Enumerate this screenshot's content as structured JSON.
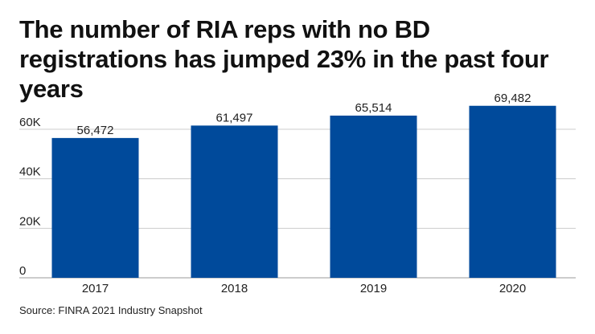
{
  "chart_data": {
    "type": "bar",
    "title": "The number of RIA reps with no BD registrations has jumped 23% in the past four years",
    "categories": [
      "2017",
      "2018",
      "2019",
      "2020"
    ],
    "values": [
      56472,
      61497,
      65514,
      69482
    ],
    "data_labels": [
      "56,472",
      "61,497",
      "65,514",
      "69,482"
    ],
    "yticks": [
      0,
      20000,
      40000,
      60000
    ],
    "ytick_labels": [
      "0",
      "20K",
      "40K",
      "60K"
    ],
    "ylim": [
      0,
      60000
    ],
    "grid": true,
    "bar_color": "#004a9b",
    "source": "Source: FINRA 2021 Industry Snapshot"
  }
}
